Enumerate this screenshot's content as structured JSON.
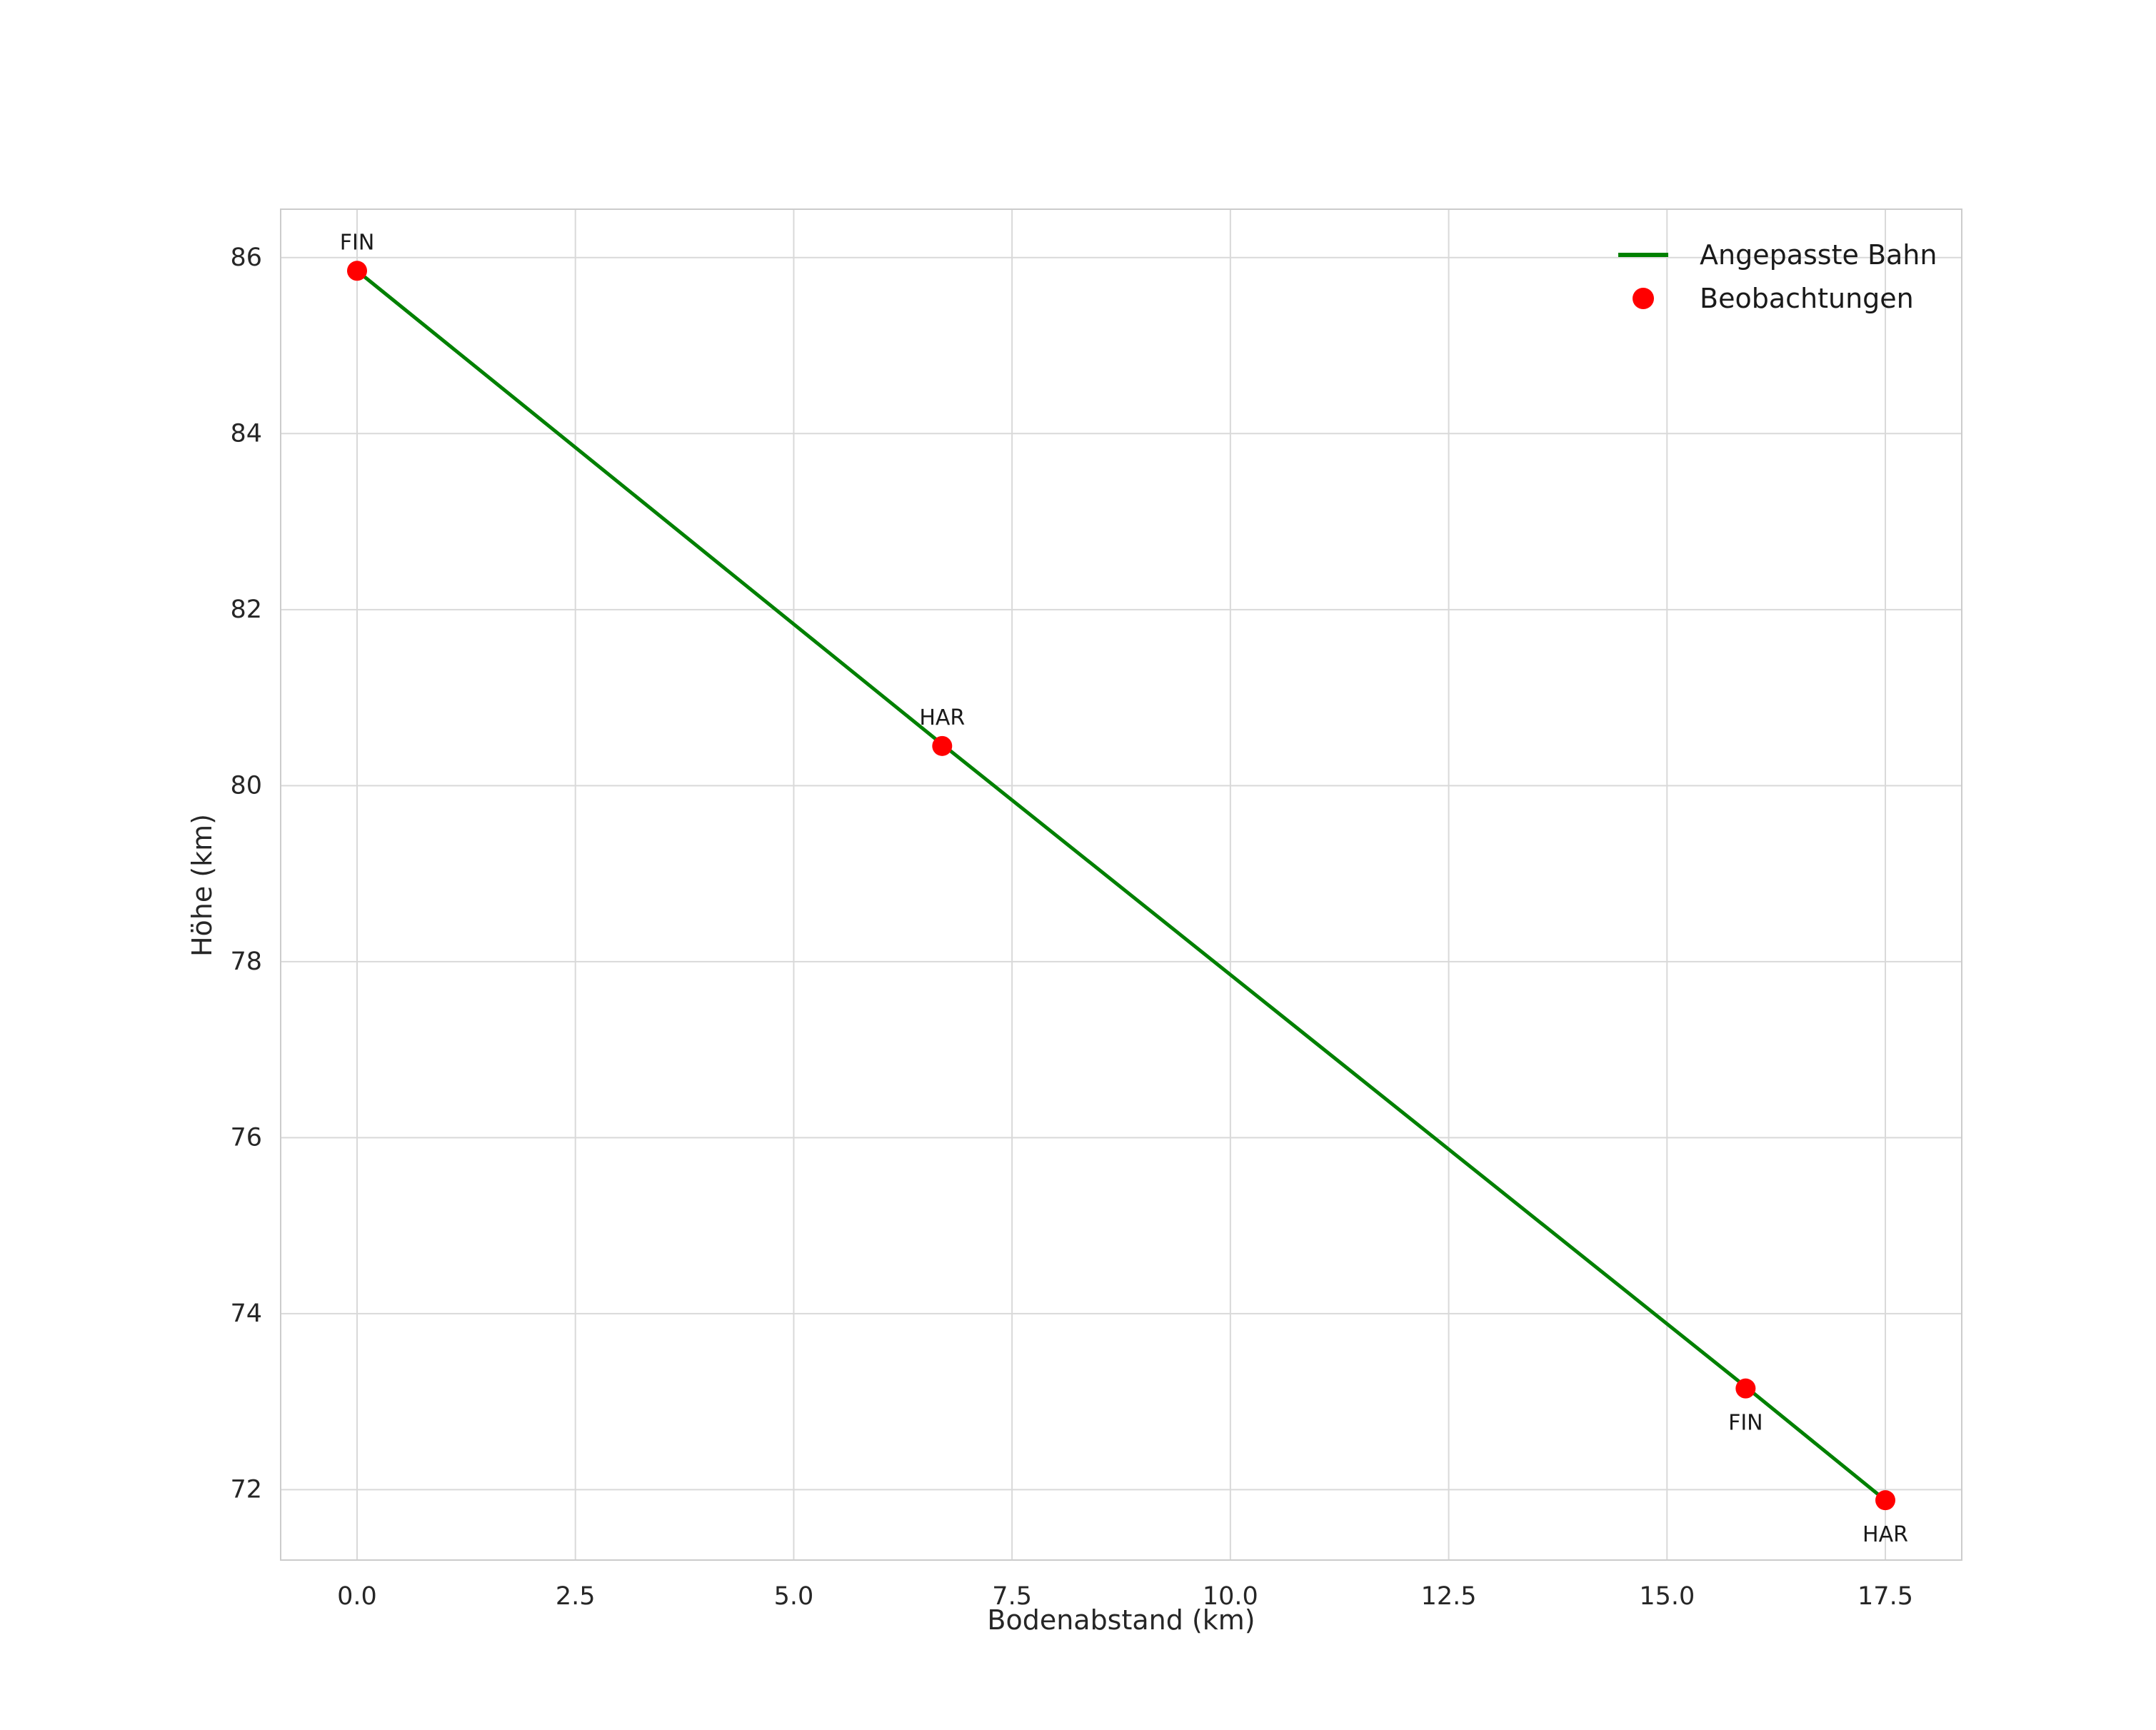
{
  "chart_data": {
    "type": "line",
    "title": "",
    "xlabel": "Bodenabstand (km)",
    "ylabel": "Höhe (km)",
    "xlim": [
      -0.875,
      18.375
    ],
    "ylim": [
      71.2,
      86.55
    ],
    "xticks": [
      0.0,
      2.5,
      5.0,
      7.5,
      10.0,
      12.5,
      15.0,
      17.5
    ],
    "xtick_labels": [
      "0.0",
      "2.5",
      "5.0",
      "7.5",
      "10.0",
      "12.5",
      "15.0",
      "17.5"
    ],
    "yticks": [
      72,
      74,
      76,
      78,
      80,
      82,
      84,
      86
    ],
    "ytick_labels": [
      "72",
      "74",
      "76",
      "78",
      "80",
      "82",
      "84",
      "86"
    ],
    "grid": true,
    "grid_color": "#d9d9d9",
    "border_color": "#cccccc",
    "text_color": "#262626",
    "series": [
      {
        "name": "Angepasste Bahn",
        "type": "line",
        "color": "#008000",
        "x": [
          0.0,
          6.7,
          15.9,
          17.5
        ],
        "y": [
          85.85,
          80.47,
          73.17,
          71.88
        ]
      },
      {
        "name": "Beobachtungen",
        "type": "scatter",
        "color": "#ff0000",
        "x": [
          0.0,
          6.7,
          15.9,
          17.5
        ],
        "y": [
          85.85,
          80.45,
          73.15,
          71.88
        ]
      }
    ],
    "annotations": [
      {
        "label": "FIN",
        "x": 0.0,
        "y": 85.85,
        "placement": "above"
      },
      {
        "label": "HAR",
        "x": 6.7,
        "y": 80.45,
        "placement": "above"
      },
      {
        "label": "FIN",
        "x": 15.9,
        "y": 73.15,
        "placement": "below"
      },
      {
        "label": "HAR",
        "x": 17.5,
        "y": 71.88,
        "placement": "below"
      }
    ],
    "legend": {
      "position": "upper right",
      "entries": [
        {
          "label": "Angepasste Bahn",
          "marker": "line",
          "color": "#008000"
        },
        {
          "label": "Beobachtungen",
          "marker": "dot",
          "color": "#ff0000"
        }
      ]
    }
  }
}
